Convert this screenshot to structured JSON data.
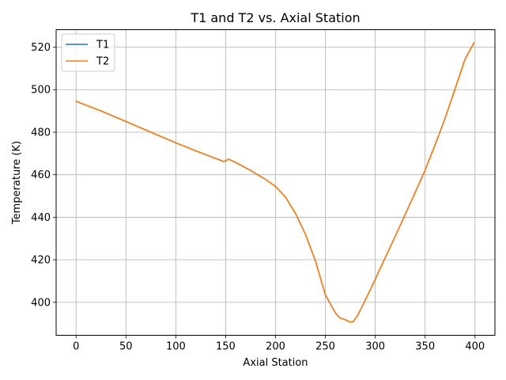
{
  "chart_data": {
    "type": "line",
    "title": "T1 and T2 vs. Axial Station",
    "xlabel": "Axial Station",
    "ylabel": "Temperature (K)",
    "xlim": [
      -20,
      420
    ],
    "ylim": [
      384.5,
      528.2
    ],
    "xticks": [
      0,
      50,
      100,
      150,
      200,
      250,
      300,
      350,
      400
    ],
    "yticks": [
      400,
      420,
      440,
      460,
      480,
      500,
      520
    ],
    "grid": true,
    "legend_position": "top-left",
    "series": [
      {
        "name": "T1",
        "color": "#1f77b4",
        "x": [
          0,
          25,
          50,
          75,
          100,
          125,
          148,
          150,
          153,
          160,
          175,
          190,
          200,
          210,
          220,
          230,
          240,
          250,
          260,
          265,
          270,
          275,
          278,
          282,
          290,
          300,
          310,
          320,
          330,
          340,
          350,
          360,
          370,
          380,
          390,
          399
        ],
        "y": [
          494.5,
          490,
          485,
          480,
          475,
          470.3,
          466.2,
          466.5,
          467.3,
          465.8,
          462,
          457.8,
          454.5,
          449.5,
          441.8,
          432,
          419.5,
          403.5,
          395,
          392.5,
          391.8,
          390.7,
          391,
          393.5,
          401,
          410.8,
          421,
          431,
          441.3,
          451.6,
          462.2,
          474,
          486.5,
          500.3,
          514.3,
          522
        ]
      },
      {
        "name": "T2",
        "color": "#ff7f0e",
        "x": [
          0,
          25,
          50,
          75,
          100,
          125,
          148,
          150,
          153,
          160,
          175,
          190,
          200,
          210,
          220,
          230,
          240,
          250,
          260,
          265,
          270,
          275,
          278,
          282,
          290,
          300,
          310,
          320,
          330,
          340,
          350,
          360,
          370,
          380,
          390,
          399
        ],
        "y": [
          494.5,
          490,
          485,
          480,
          475,
          470.3,
          466.2,
          466.5,
          467.3,
          465.8,
          462,
          457.8,
          454.5,
          449.5,
          441.8,
          432,
          419.5,
          403.5,
          395,
          392.5,
          391.8,
          390.7,
          391,
          393.5,
          401,
          410.8,
          421,
          431,
          441.3,
          451.6,
          462.2,
          474,
          486.5,
          500.3,
          514.3,
          522
        ]
      }
    ]
  }
}
